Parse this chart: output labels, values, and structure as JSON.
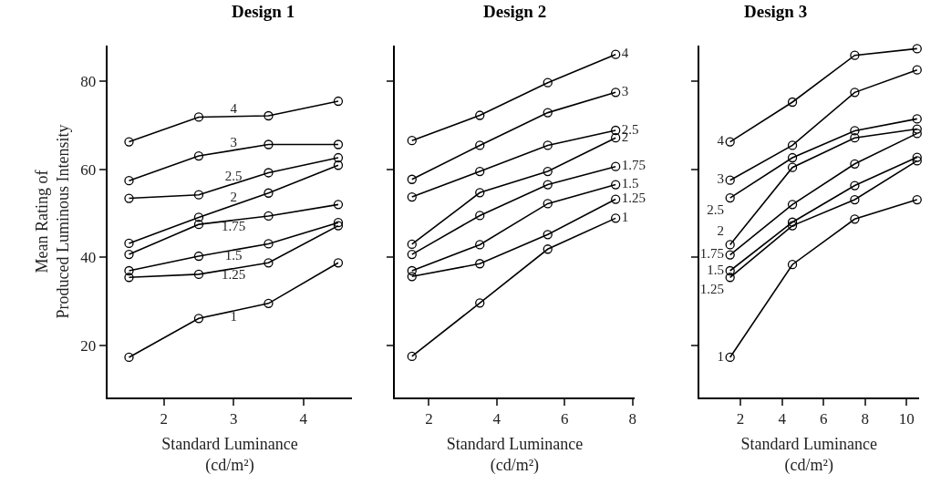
{
  "chart_data": [
    {
      "type": "line",
      "title": "Design 1",
      "ylabel": "Mean Rating of\nProduced Luminous Intensity",
      "xlabel": "Standard Luminance\n(cd/m²)",
      "x": [
        1.5,
        2.5,
        3.5,
        4.5
      ],
      "xlim": [
        1.19,
        4.7
      ],
      "xticks": [
        2,
        3,
        4
      ],
      "ylim": [
        8.3,
        88
      ],
      "yticks": [
        20,
        40,
        60,
        80
      ],
      "marker": "circle",
      "line_style": "solid",
      "series": [
        {
          "name": "4",
          "color": "#000000",
          "values": [
            66.2,
            71.8,
            72.1,
            75.4
          ]
        },
        {
          "name": "3",
          "color": "#000000",
          "values": [
            57.4,
            63.0,
            65.6,
            65.6
          ]
        },
        {
          "name": "2.5",
          "color": "#000000",
          "values": [
            53.4,
            54.2,
            59.2,
            62.6
          ]
        },
        {
          "name": "2",
          "color": "#000000",
          "values": [
            43.2,
            49.1,
            54.6,
            60.9
          ]
        },
        {
          "name": "1.75",
          "color": "#000000",
          "values": [
            40.7,
            47.5,
            49.4,
            52.0
          ]
        },
        {
          "name": "1.5",
          "color": "#000000",
          "values": [
            37.0,
            40.3,
            43.1,
            47.9
          ]
        },
        {
          "name": "1.25",
          "color": "#000000",
          "values": [
            35.5,
            36.2,
            38.8,
            47.2
          ]
        },
        {
          "name": "1",
          "color": "#000000",
          "values": [
            17.4,
            26.2,
            29.6,
            38.8
          ]
        }
      ]
    },
    {
      "type": "line",
      "title": "Design 2",
      "xlabel": "Standard Luminance\n(cd/m²)",
      "x": [
        1.5,
        3.5,
        5.5,
        7.5
      ],
      "xlim": [
        1.0,
        8.05
      ],
      "xticks": [
        2,
        4,
        6,
        8
      ],
      "ylim": [
        8.3,
        88
      ],
      "yticks": [
        20,
        40,
        60,
        80
      ],
      "tick_labels": "x",
      "marker": "circle",
      "line_style": "solid",
      "series": [
        {
          "name": "4",
          "color": "#000000",
          "values": [
            66.5,
            72.2,
            79.6,
            86.0
          ]
        },
        {
          "name": "3",
          "color": "#000000",
          "values": [
            57.7,
            65.4,
            72.8,
            77.4
          ]
        },
        {
          "name": "2.5",
          "color": "#000000",
          "values": [
            53.7,
            59.5,
            65.4,
            68.8
          ]
        },
        {
          "name": "2",
          "color": "#000000",
          "values": [
            43.0,
            54.7,
            59.5,
            67.1
          ]
        },
        {
          "name": "1.75",
          "color": "#000000",
          "values": [
            40.7,
            49.5,
            56.5,
            60.6
          ]
        },
        {
          "name": "1.5",
          "color": "#000000",
          "values": [
            37.0,
            42.9,
            52.2,
            56.5
          ]
        },
        {
          "name": "1.25",
          "color": "#000000",
          "values": [
            35.7,
            38.6,
            45.2,
            53.2
          ]
        },
        {
          "name": "1",
          "color": "#000000",
          "values": [
            17.6,
            29.7,
            41.9,
            48.9
          ]
        }
      ]
    },
    {
      "type": "line",
      "title": "Design 3",
      "xlabel": "Standard Luminance\n(cd/m²)",
      "x": [
        1.5,
        4.5,
        7.5,
        10.5
      ],
      "xlim": [
        0.0,
        10.6
      ],
      "xticks": [
        2,
        4,
        6,
        8,
        10
      ],
      "ylim": [
        8.3,
        88
      ],
      "yticks": [
        20,
        40,
        60,
        80
      ],
      "tick_labels": "x",
      "marker": "circle",
      "line_style": "solid",
      "series": [
        {
          "name": "4",
          "color": "#000000",
          "values": [
            66.2,
            75.2,
            85.8,
            87.3
          ]
        },
        {
          "name": "3",
          "color": "#000000",
          "values": [
            57.5,
            65.4,
            77.4,
            82.5
          ]
        },
        {
          "name": "2.5",
          "color": "#000000",
          "values": [
            53.5,
            62.6,
            68.7,
            71.4
          ]
        },
        {
          "name": "2",
          "color": "#000000",
          "values": [
            42.9,
            60.4,
            67.1,
            69.1
          ]
        },
        {
          "name": "1.75",
          "color": "#000000",
          "values": [
            40.6,
            52.0,
            61.2,
            68.1
          ]
        },
        {
          "name": "1.5",
          "color": "#000000",
          "values": [
            37.0,
            48.0,
            56.3,
            62.7
          ]
        },
        {
          "name": "1.25",
          "color": "#000000",
          "values": [
            35.5,
            47.2,
            53.1,
            61.9
          ]
        },
        {
          "name": "1",
          "color": "#000000",
          "values": [
            17.4,
            38.4,
            48.7,
            53.1
          ]
        }
      ]
    }
  ]
}
